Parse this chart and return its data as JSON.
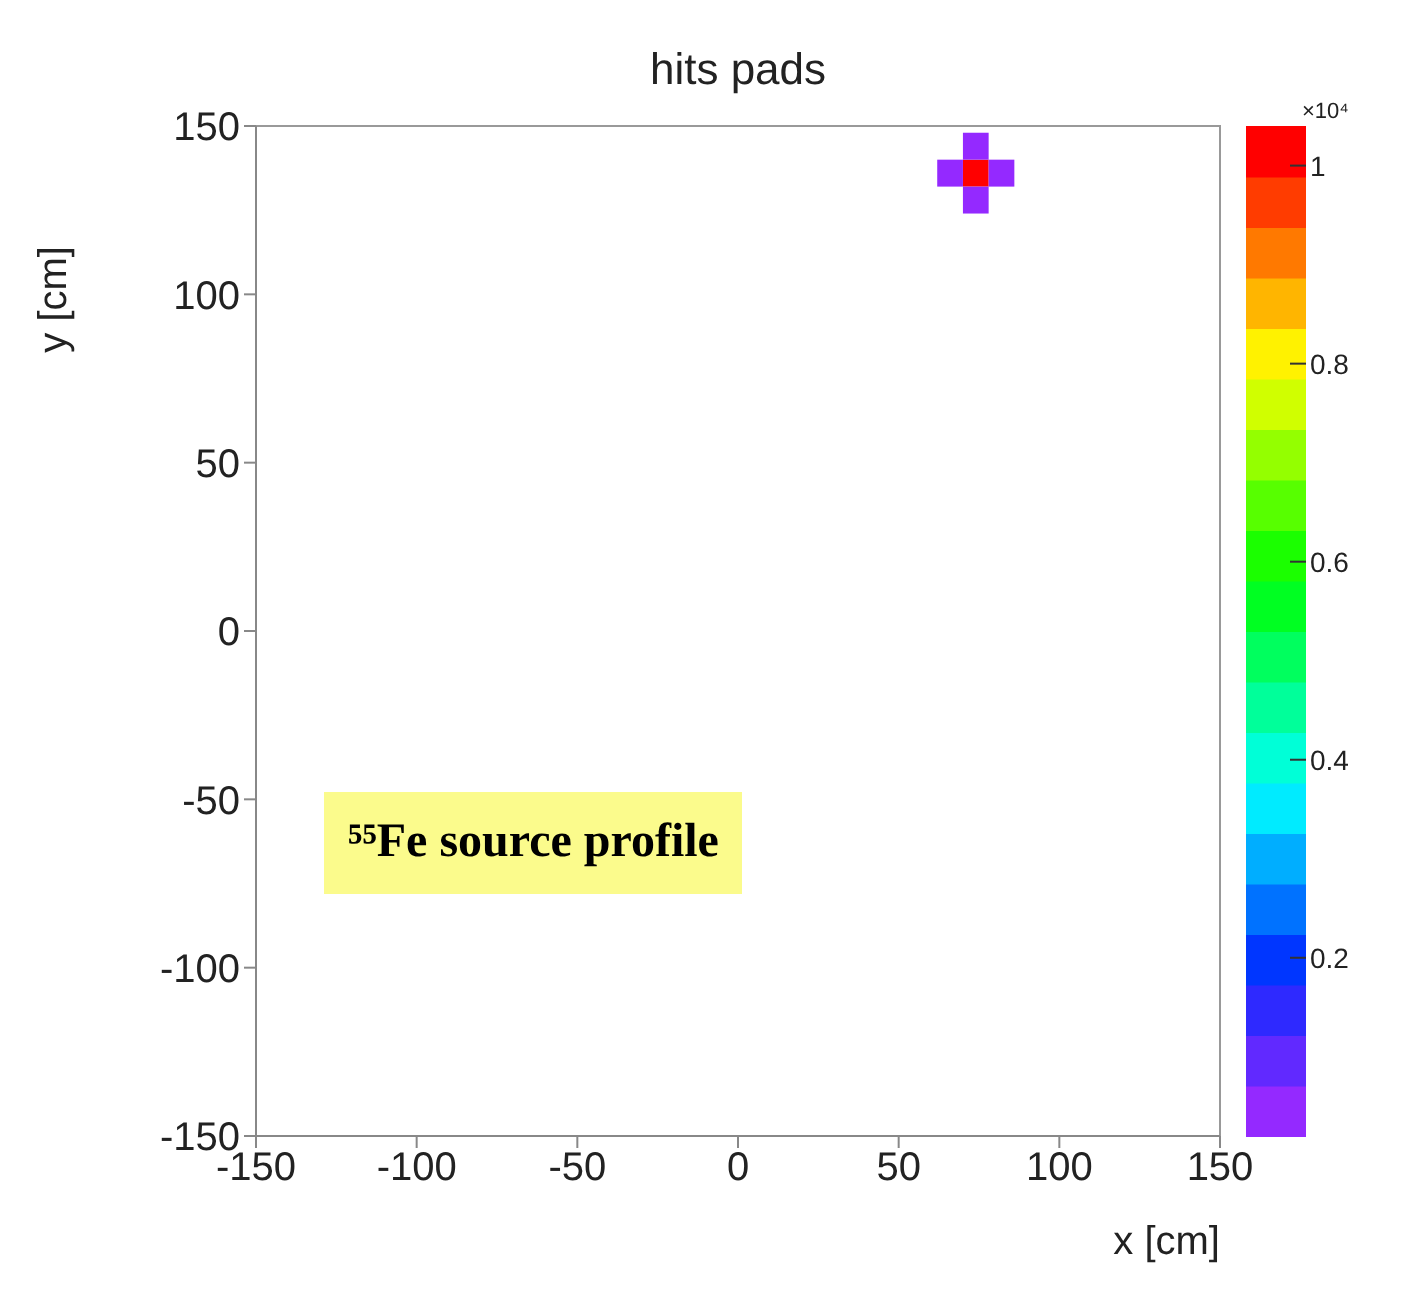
{
  "chart_data": {
    "type": "scatter",
    "title": "hits pads",
    "xlabel": "x [cm]",
    "ylabel": "y [cm]",
    "clabel": "×10⁴",
    "marker": "square",
    "x": [
      74,
      66,
      82,
      74,
      74
    ],
    "values": [
      136,
      136,
      136,
      128,
      144
    ],
    "cvalues": [
      1,
      0.04,
      0.04,
      0.04,
      0.04
    ],
    "xlim": [
      -150,
      150
    ],
    "xticks": [
      -150,
      -100,
      -50,
      0,
      50,
      100,
      150
    ],
    "ylim": [
      -150,
      150
    ],
    "yticks": [
      -150,
      -100,
      -50,
      0,
      50,
      100,
      150
    ],
    "clim": [
      0.02,
      1.04
    ],
    "cticks": [
      0.2,
      0.4,
      0.6,
      0.8,
      1
    ],
    "grid": false,
    "annotations": [
      "⁵⁵Fe source profile"
    ]
  }
}
